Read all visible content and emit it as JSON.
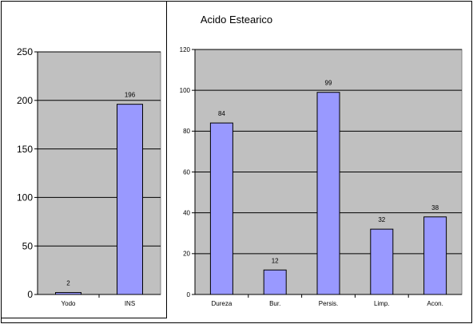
{
  "chart_data": [
    {
      "type": "bar",
      "title": "",
      "categories": [
        "Yodo",
        "INS"
      ],
      "values": [
        2,
        196
      ],
      "data_labels": [
        "2",
        "196"
      ],
      "ylim": [
        0,
        250
      ],
      "yticks": [
        0,
        50,
        100,
        150,
        200,
        250
      ],
      "grid": true,
      "legend": "none",
      "colors": {
        "bar": "#9999ff",
        "plot_bg": "#c0c0c0",
        "bar_stroke": "#000000"
      }
    },
    {
      "type": "bar",
      "title": "Acido Estearico",
      "categories": [
        "Dureza",
        "Bur.",
        "Persis.",
        "Limp.",
        "Acon."
      ],
      "values": [
        84,
        12,
        99,
        32,
        38
      ],
      "data_labels": [
        "84",
        "12",
        "99",
        "32",
        "38"
      ],
      "ylim": [
        0,
        120
      ],
      "yticks": [
        0,
        20,
        40,
        60,
        80,
        100,
        120
      ],
      "grid": true,
      "legend": "none",
      "colors": {
        "bar": "#9999ff",
        "plot_bg": "#c0c0c0",
        "bar_stroke": "#000000"
      }
    }
  ]
}
